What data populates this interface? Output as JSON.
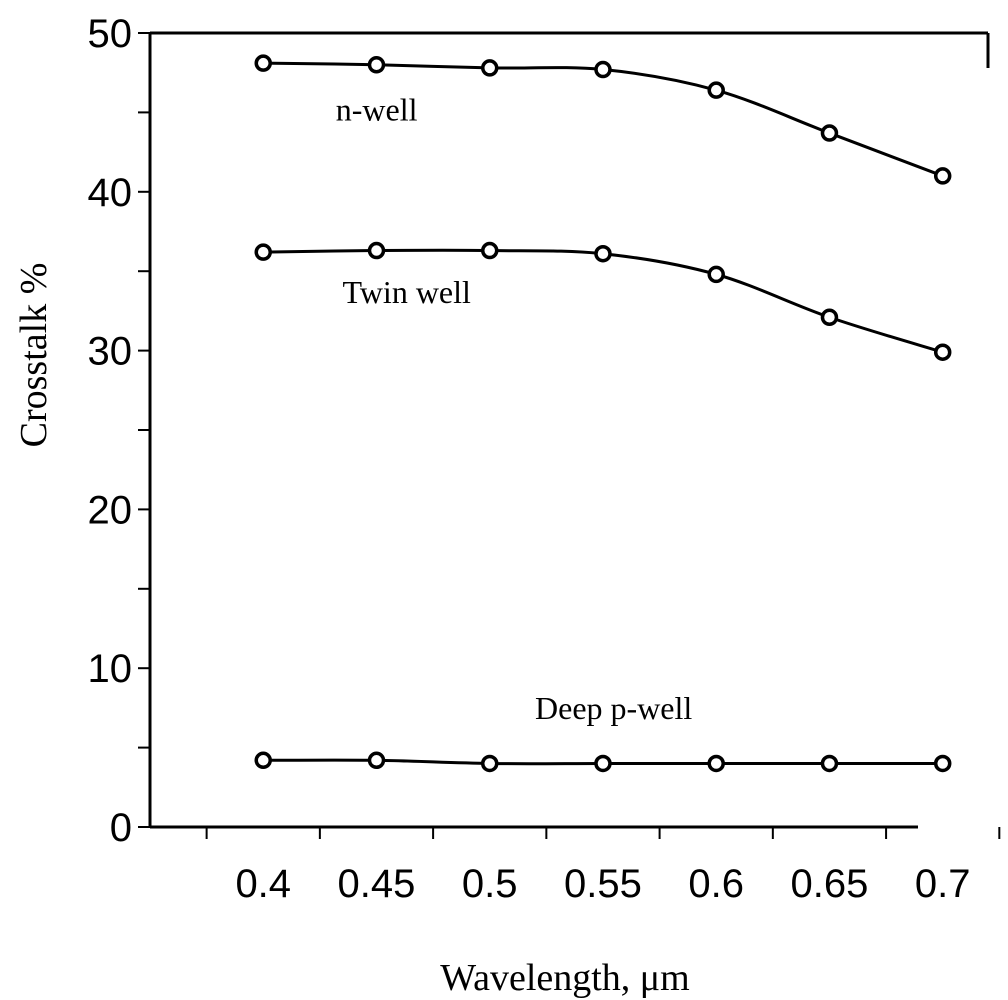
{
  "chart_data": {
    "type": "line",
    "title": "",
    "xlabel": "Wavelength, μm",
    "ylabel": "Crosstalk %",
    "x": [
      0.4,
      0.45,
      0.5,
      0.55,
      0.6,
      0.65,
      0.7
    ],
    "x_tick_labels": [
      "0.4",
      "0.45",
      "0.5",
      "0.55",
      "0.6",
      "0.65",
      "0.7"
    ],
    "y_ticks": [
      0,
      10,
      20,
      30,
      40,
      50
    ],
    "y_tick_labels": [
      "0",
      "10",
      "20",
      "30",
      "40",
      "50"
    ],
    "xlim": [
      0.35,
      0.72
    ],
    "ylim": [
      0,
      50
    ],
    "grid": false,
    "legend": "inline labels",
    "series": [
      {
        "name": "n-well",
        "values": [
          48.1,
          48.0,
          47.8,
          47.7,
          46.4,
          43.7,
          41.0
        ]
      },
      {
        "name": "Twin well",
        "values": [
          36.2,
          36.3,
          36.3,
          36.1,
          34.8,
          32.1,
          29.9
        ]
      },
      {
        "name": "Deep p-well",
        "values": [
          4.2,
          4.2,
          4.0,
          4.0,
          4.0,
          4.0,
          4.0
        ]
      }
    ]
  }
}
